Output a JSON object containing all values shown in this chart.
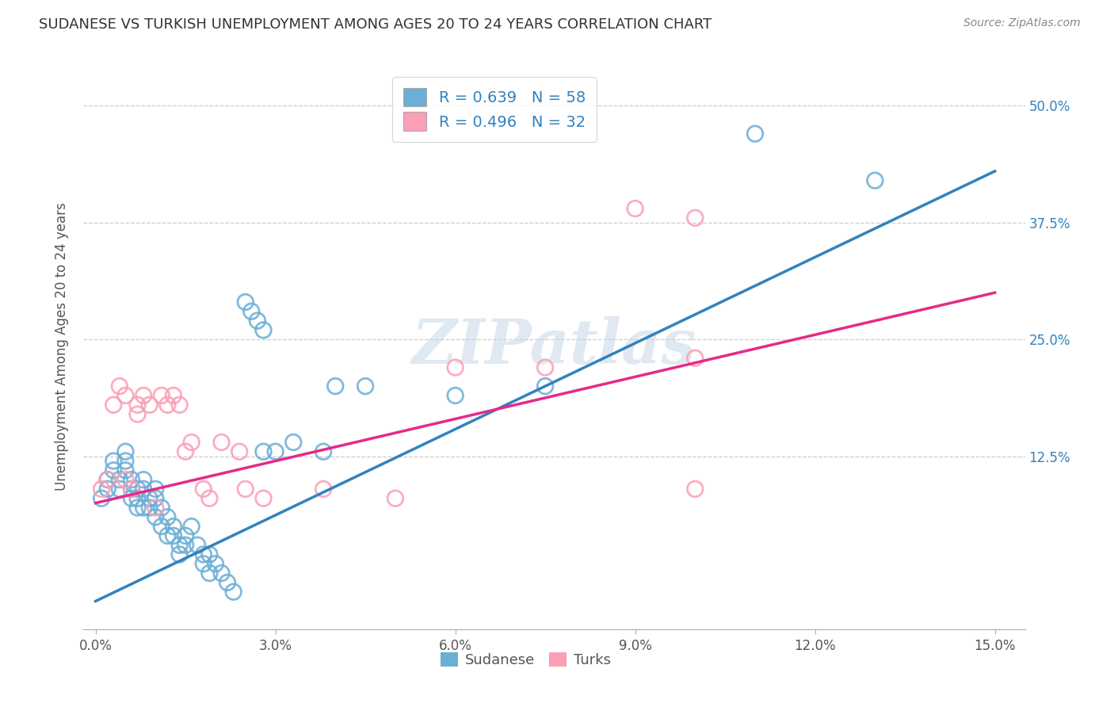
{
  "title": "SUDANESE VS TURKISH UNEMPLOYMENT AMONG AGES 20 TO 24 YEARS CORRELATION CHART",
  "source": "Source: ZipAtlas.com",
  "xlabel_ticks": [
    "0.0%",
    "3.0%",
    "6.0%",
    "9.0%",
    "12.0%",
    "15.0%"
  ],
  "xlabel_vals": [
    0.0,
    0.03,
    0.06,
    0.09,
    0.12,
    0.15
  ],
  "ylabel_ticks": [
    "12.5%",
    "25.0%",
    "37.5%",
    "50.0%"
  ],
  "ylabel_vals": [
    0.125,
    0.25,
    0.375,
    0.5
  ],
  "ylabel_label": "Unemployment Among Ages 20 to 24 years",
  "xmin": -0.002,
  "xmax": 0.155,
  "ymin": -0.06,
  "ymax": 0.545,
  "blue_R": 0.639,
  "blue_N": 58,
  "pink_R": 0.496,
  "pink_N": 32,
  "blue_color": "#6baed6",
  "pink_color": "#fa9fb5",
  "blue_line_color": "#3182bd",
  "pink_line_color": "#e7298a",
  "watermark": "ZIPatlas",
  "legend_R_color": "#3182bd",
  "sudanese_scatter": [
    [
      0.001,
      0.08
    ],
    [
      0.002,
      0.1
    ],
    [
      0.002,
      0.09
    ],
    [
      0.003,
      0.12
    ],
    [
      0.003,
      0.11
    ],
    [
      0.004,
      0.1
    ],
    [
      0.004,
      0.09
    ],
    [
      0.005,
      0.13
    ],
    [
      0.005,
      0.12
    ],
    [
      0.005,
      0.11
    ],
    [
      0.006,
      0.1
    ],
    [
      0.006,
      0.09
    ],
    [
      0.006,
      0.08
    ],
    [
      0.007,
      0.09
    ],
    [
      0.007,
      0.08
    ],
    [
      0.007,
      0.07
    ],
    [
      0.008,
      0.1
    ],
    [
      0.008,
      0.09
    ],
    [
      0.008,
      0.07
    ],
    [
      0.009,
      0.08
    ],
    [
      0.009,
      0.07
    ],
    [
      0.01,
      0.09
    ],
    [
      0.01,
      0.08
    ],
    [
      0.01,
      0.06
    ],
    [
      0.011,
      0.07
    ],
    [
      0.011,
      0.05
    ],
    [
      0.012,
      0.06
    ],
    [
      0.012,
      0.04
    ],
    [
      0.013,
      0.05
    ],
    [
      0.013,
      0.04
    ],
    [
      0.014,
      0.03
    ],
    [
      0.014,
      0.02
    ],
    [
      0.015,
      0.04
    ],
    [
      0.015,
      0.03
    ],
    [
      0.016,
      0.05
    ],
    [
      0.017,
      0.03
    ],
    [
      0.018,
      0.02
    ],
    [
      0.018,
      0.01
    ],
    [
      0.019,
      0.02
    ],
    [
      0.019,
      0.0
    ],
    [
      0.02,
      0.01
    ],
    [
      0.021,
      0.0
    ],
    [
      0.022,
      -0.01
    ],
    [
      0.023,
      -0.02
    ],
    [
      0.025,
      0.29
    ],
    [
      0.026,
      0.28
    ],
    [
      0.027,
      0.27
    ],
    [
      0.028,
      0.26
    ],
    [
      0.028,
      0.13
    ],
    [
      0.03,
      0.13
    ],
    [
      0.033,
      0.14
    ],
    [
      0.038,
      0.13
    ],
    [
      0.04,
      0.2
    ],
    [
      0.045,
      0.2
    ],
    [
      0.06,
      0.19
    ],
    [
      0.075,
      0.2
    ],
    [
      0.11,
      0.47
    ],
    [
      0.13,
      0.42
    ]
  ],
  "turks_scatter": [
    [
      0.001,
      0.09
    ],
    [
      0.002,
      0.1
    ],
    [
      0.003,
      0.18
    ],
    [
      0.004,
      0.2
    ],
    [
      0.005,
      0.19
    ],
    [
      0.005,
      0.1
    ],
    [
      0.006,
      0.09
    ],
    [
      0.007,
      0.18
    ],
    [
      0.007,
      0.17
    ],
    [
      0.008,
      0.19
    ],
    [
      0.009,
      0.18
    ],
    [
      0.01,
      0.07
    ],
    [
      0.011,
      0.19
    ],
    [
      0.012,
      0.18
    ],
    [
      0.013,
      0.19
    ],
    [
      0.014,
      0.18
    ],
    [
      0.015,
      0.13
    ],
    [
      0.016,
      0.14
    ],
    [
      0.018,
      0.09
    ],
    [
      0.019,
      0.08
    ],
    [
      0.021,
      0.14
    ],
    [
      0.024,
      0.13
    ],
    [
      0.025,
      0.09
    ],
    [
      0.028,
      0.08
    ],
    [
      0.038,
      0.09
    ],
    [
      0.05,
      0.08
    ],
    [
      0.06,
      0.22
    ],
    [
      0.075,
      0.22
    ],
    [
      0.09,
      0.39
    ],
    [
      0.1,
      0.38
    ],
    [
      0.1,
      0.09
    ],
    [
      0.1,
      0.23
    ]
  ],
  "blue_trendline_x": [
    0.0,
    0.15
  ],
  "blue_trendline_y": [
    -0.03,
    0.43
  ],
  "pink_trendline_x": [
    0.0,
    0.15
  ],
  "pink_trendline_y": [
    0.075,
    0.3
  ],
  "background_color": "#ffffff",
  "grid_color": "#cccccc"
}
